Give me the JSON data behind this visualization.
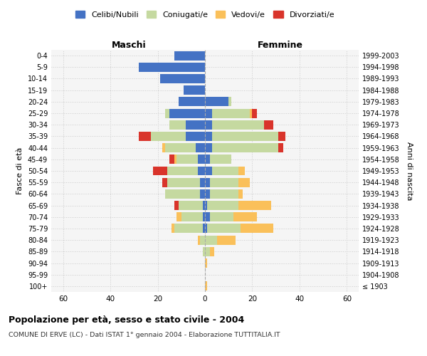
{
  "age_groups": [
    "100+",
    "95-99",
    "90-94",
    "85-89",
    "80-84",
    "75-79",
    "70-74",
    "65-69",
    "60-64",
    "55-59",
    "50-54",
    "45-49",
    "40-44",
    "35-39",
    "30-34",
    "25-29",
    "20-24",
    "15-19",
    "10-14",
    "5-9",
    "0-4"
  ],
  "birth_years": [
    "≤ 1903",
    "1904-1908",
    "1909-1913",
    "1914-1918",
    "1919-1923",
    "1924-1928",
    "1929-1933",
    "1934-1938",
    "1939-1943",
    "1944-1948",
    "1949-1953",
    "1954-1958",
    "1959-1963",
    "1964-1968",
    "1969-1973",
    "1974-1978",
    "1979-1983",
    "1984-1988",
    "1989-1993",
    "1994-1998",
    "1999-2003"
  ],
  "colors": {
    "celibi": "#4472C4",
    "coniugati": "#C5D9A0",
    "vedovi": "#FAC05A",
    "divorziati": "#D9342B"
  },
  "males": {
    "celibi": [
      0,
      0,
      0,
      0,
      0,
      1,
      1,
      1,
      2,
      2,
      3,
      3,
      4,
      8,
      8,
      15,
      11,
      9,
      19,
      28,
      13
    ],
    "coniugati": [
      0,
      0,
      0,
      1,
      2,
      12,
      9,
      10,
      15,
      14,
      13,
      9,
      13,
      15,
      7,
      2,
      0,
      0,
      0,
      0,
      0
    ],
    "vedovi": [
      0,
      0,
      0,
      0,
      1,
      1,
      2,
      0,
      0,
      0,
      0,
      1,
      1,
      0,
      0,
      0,
      0,
      0,
      0,
      0,
      0
    ],
    "divorziati": [
      0,
      0,
      0,
      0,
      0,
      0,
      0,
      2,
      0,
      2,
      6,
      2,
      0,
      5,
      0,
      0,
      0,
      0,
      0,
      0,
      0
    ]
  },
  "females": {
    "celibi": [
      0,
      0,
      0,
      0,
      0,
      1,
      2,
      1,
      2,
      2,
      3,
      2,
      3,
      3,
      3,
      3,
      10,
      0,
      0,
      0,
      0
    ],
    "coniugati": [
      0,
      0,
      0,
      2,
      5,
      14,
      10,
      13,
      12,
      12,
      11,
      9,
      28,
      28,
      22,
      16,
      1,
      0,
      0,
      0,
      0
    ],
    "vedovi": [
      1,
      0,
      1,
      2,
      8,
      14,
      10,
      14,
      2,
      5,
      3,
      0,
      0,
      0,
      0,
      1,
      0,
      0,
      0,
      0,
      0
    ],
    "divorziati": [
      0,
      0,
      0,
      0,
      0,
      0,
      0,
      0,
      0,
      0,
      0,
      0,
      2,
      3,
      4,
      2,
      0,
      0,
      0,
      0,
      0
    ]
  },
  "xlim": 65,
  "title": "Popolazione per età, sesso e stato civile - 2004",
  "subtitle": "COMUNE DI ERVE (LC) - Dati ISTAT 1° gennaio 2004 - Elaborazione TUTTITALIA.IT",
  "ylabel_left": "Fasce di età",
  "ylabel_right": "Anni di nascita",
  "legend_labels": [
    "Celibi/Nubili",
    "Coniugati/e",
    "Vedovi/e",
    "Divorziati/e"
  ],
  "maschi_label": "Maschi",
  "femmine_label": "Femmine",
  "bg_color": "#f5f5f5"
}
